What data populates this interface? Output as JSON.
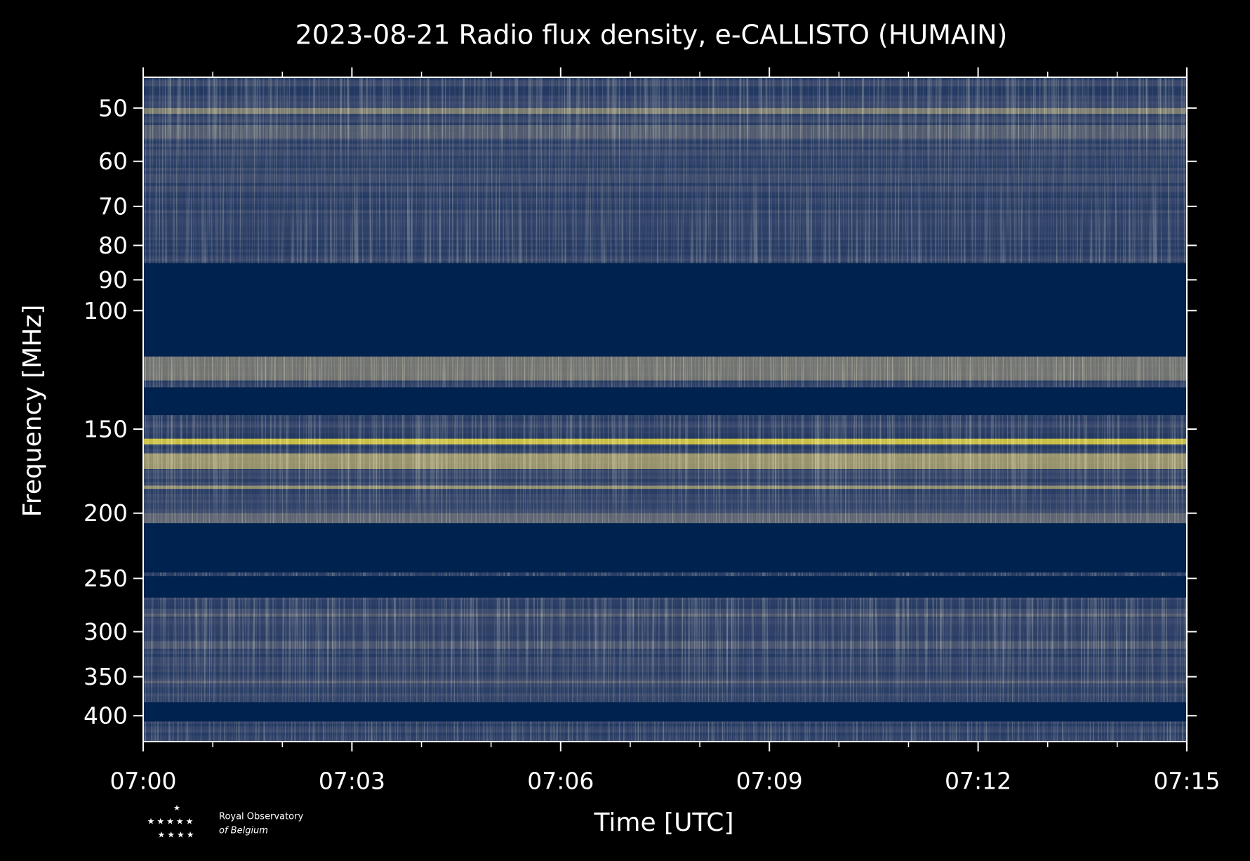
{
  "chart_data": {
    "type": "spectrogram",
    "title": "2023-08-21 Radio flux density, e-CALLISTO (HUMAIN)",
    "xlabel": "Time [UTC]",
    "ylabel": "Frequency [MHz]",
    "xlim": [
      "07:00",
      "07:15"
    ],
    "xticks": [
      "07:00",
      "07:03",
      "07:06",
      "07:09",
      "07:12",
      "07:15"
    ],
    "xminorticks": [
      "07:01",
      "07:02",
      "07:04",
      "07:05",
      "07:07",
      "07:08",
      "07:10",
      "07:11",
      "07:13",
      "07:14"
    ],
    "ylim": [
      45,
      437
    ],
    "ylog": true,
    "yinverted": true,
    "yticks": [
      50,
      60,
      70,
      80,
      90,
      100,
      150,
      200,
      250,
      300,
      350,
      400
    ],
    "colormap": [
      "#00224e",
      "#35456c",
      "#7c7b78",
      "#bcaf6f",
      "#fee838"
    ],
    "background_level": 0.22,
    "masked_bands": [
      [
        85,
        117
      ],
      [
        130,
        143
      ],
      [
        207,
        245
      ],
      [
        248,
        267
      ],
      [
        382,
        408
      ]
    ],
    "bright_bands": [
      [
        50,
        51,
        0.6
      ],
      [
        53,
        55.5,
        0.4
      ],
      [
        117,
        127,
        0.55
      ],
      [
        155,
        158,
        1.0
      ],
      [
        163,
        172,
        0.75
      ],
      [
        182,
        184,
        0.7
      ],
      [
        200,
        207,
        0.45
      ],
      [
        282,
        285,
        0.4
      ],
      [
        310,
        318,
        0.35
      ],
      [
        355,
        358,
        0.4
      ]
    ],
    "logo": {
      "line1": "Royal Observatory",
      "line2": "of Belgium"
    }
  }
}
